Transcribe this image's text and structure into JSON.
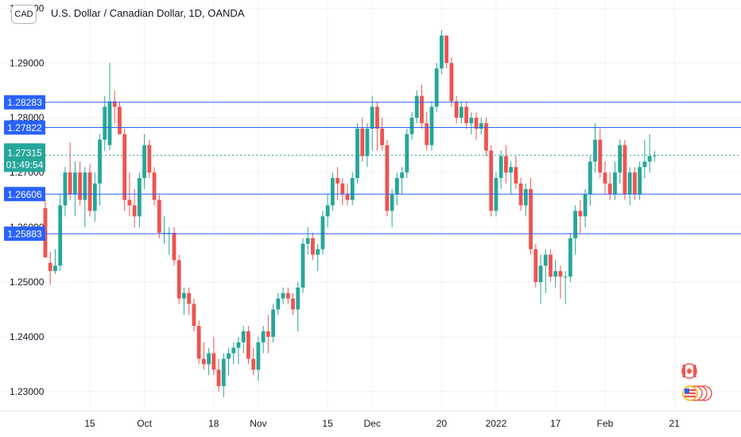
{
  "header": {
    "currency_badge": "CAD",
    "title": "U.S. Dollar / Canadian Dollar, 1D, OANDA"
  },
  "colors": {
    "up": "#26a69a",
    "down": "#ef5350",
    "hline": "#2962ff",
    "grid": "#f0f3fa",
    "axis_text": "#131722",
    "current": "#26a69a"
  },
  "chart_data": {
    "type": "candlestick",
    "title": "",
    "ylim": [
      1.2265,
      1.3015
    ],
    "y_ticks": [
      "1.23000",
      "1.24000",
      "1.25000",
      "1.26000",
      "1.27000",
      "1.28000",
      "1.29000",
      "1.30000"
    ],
    "y_tick_values": [
      1.23,
      1.24,
      1.25,
      1.26,
      1.27,
      1.28,
      1.29,
      1.3
    ],
    "x_ticks": [
      "15",
      "Oct",
      "18",
      "Nov",
      "15",
      "Dec",
      "20",
      "2022",
      "17",
      "Feb",
      "21"
    ],
    "x_tick_index": [
      9,
      20,
      34,
      43,
      57,
      66,
      80,
      91,
      103,
      113,
      127
    ],
    "horizontal_lines": [
      {
        "label": "1.28283",
        "value": 1.28283
      },
      {
        "label": "1.27822",
        "value": 1.27822
      },
      {
        "label": "1.26606",
        "value": 1.26606
      },
      {
        "label": "1.25883",
        "value": 1.25883
      }
    ],
    "current_price": {
      "label": "1.27315",
      "value": 1.27315,
      "countdown": "01:49:54"
    },
    "candles": [
      [
        1.2635,
        1.265,
        1.2545,
        1.2545
      ],
      [
        1.2535,
        1.2555,
        1.2495,
        1.252
      ],
      [
        1.252,
        1.256,
        1.2515,
        1.253
      ],
      [
        1.253,
        1.266,
        1.252,
        1.264
      ],
      [
        1.264,
        1.271,
        1.262,
        1.27
      ],
      [
        1.27,
        1.2755,
        1.265,
        1.266
      ],
      [
        1.266,
        1.272,
        1.262,
        1.27
      ],
      [
        1.27,
        1.272,
        1.264,
        1.265
      ],
      [
        1.265,
        1.271,
        1.26,
        1.27
      ],
      [
        1.27,
        1.2715,
        1.262,
        1.263
      ],
      [
        1.263,
        1.27,
        1.261,
        1.268
      ],
      [
        1.268,
        1.277,
        1.264,
        1.276
      ],
      [
        1.276,
        1.284,
        1.274,
        1.282
      ],
      [
        1.275,
        1.29,
        1.274,
        1.283
      ],
      [
        1.283,
        1.285,
        1.279,
        1.282
      ],
      [
        1.282,
        1.283,
        1.277,
        1.277
      ],
      [
        1.277,
        1.278,
        1.263,
        1.265
      ],
      [
        1.265,
        1.27,
        1.262,
        1.264
      ],
      [
        1.264,
        1.267,
        1.26,
        1.262
      ],
      [
        1.262,
        1.27,
        1.26,
        1.269
      ],
      [
        1.269,
        1.277,
        1.267,
        1.275
      ],
      [
        1.275,
        1.276,
        1.269,
        1.27
      ],
      [
        1.27,
        1.271,
        1.264,
        1.265
      ],
      [
        1.265,
        1.266,
        1.258,
        1.259
      ],
      [
        1.259,
        1.262,
        1.257,
        1.259
      ],
      [
        1.259,
        1.26,
        1.255,
        1.259
      ],
      [
        1.259,
        1.26,
        1.253,
        1.254
      ],
      [
        1.254,
        1.255,
        1.246,
        1.247
      ],
      [
        1.247,
        1.249,
        1.244,
        1.248
      ],
      [
        1.248,
        1.249,
        1.244,
        1.246
      ],
      [
        1.246,
        1.247,
        1.241,
        1.242
      ],
      [
        1.242,
        1.243,
        1.235,
        1.236
      ],
      [
        1.236,
        1.239,
        1.234,
        1.235
      ],
      [
        1.235,
        1.238,
        1.233,
        1.237
      ],
      [
        1.237,
        1.24,
        1.233,
        1.234
      ],
      [
        1.234,
        1.236,
        1.23,
        1.231
      ],
      [
        1.231,
        1.237,
        1.229,
        1.236
      ],
      [
        1.236,
        1.238,
        1.233,
        1.237
      ],
      [
        1.237,
        1.239,
        1.235,
        1.238
      ],
      [
        1.238,
        1.24,
        1.235,
        1.239
      ],
      [
        1.239,
        1.242,
        1.237,
        1.241
      ],
      [
        1.241,
        1.242,
        1.235,
        1.236
      ],
      [
        1.236,
        1.238,
        1.233,
        1.234
      ],
      [
        1.234,
        1.24,
        1.232,
        1.239
      ],
      [
        1.239,
        1.242,
        1.237,
        1.241
      ],
      [
        1.241,
        1.244,
        1.237,
        1.24
      ],
      [
        1.24,
        1.246,
        1.239,
        1.245
      ],
      [
        1.245,
        1.248,
        1.244,
        1.247
      ],
      [
        1.247,
        1.249,
        1.246,
        1.248
      ],
      [
        1.248,
        1.249,
        1.246,
        1.247
      ],
      [
        1.247,
        1.248,
        1.244,
        1.245
      ],
      [
        1.245,
        1.25,
        1.241,
        1.249
      ],
      [
        1.249,
        1.258,
        1.248,
        1.257
      ],
      [
        1.257,
        1.26,
        1.255,
        1.258
      ],
      [
        1.258,
        1.259,
        1.254,
        1.255
      ],
      [
        1.255,
        1.257,
        1.252,
        1.256
      ],
      [
        1.256,
        1.263,
        1.255,
        1.262
      ],
      [
        1.262,
        1.266,
        1.26,
        1.264
      ],
      [
        1.264,
        1.27,
        1.263,
        1.269
      ],
      [
        1.269,
        1.271,
        1.265,
        1.268
      ],
      [
        1.268,
        1.269,
        1.264,
        1.266
      ],
      [
        1.266,
        1.268,
        1.264,
        1.265
      ],
      [
        1.265,
        1.27,
        1.264,
        1.269
      ],
      [
        1.269,
        1.279,
        1.268,
        1.278
      ],
      [
        1.278,
        1.28,
        1.272,
        1.273
      ],
      [
        1.273,
        1.279,
        1.271,
        1.278
      ],
      [
        1.278,
        1.284,
        1.274,
        1.282
      ],
      [
        1.282,
        1.283,
        1.274,
        1.278
      ],
      [
        1.278,
        1.28,
        1.274,
        1.275
      ],
      [
        1.275,
        1.276,
        1.262,
        1.263
      ],
      [
        1.263,
        1.267,
        1.26,
        1.266
      ],
      [
        1.266,
        1.27,
        1.264,
        1.269
      ],
      [
        1.269,
        1.271,
        1.266,
        1.27
      ],
      [
        1.27,
        1.278,
        1.269,
        1.277
      ],
      [
        1.277,
        1.281,
        1.276,
        1.28
      ],
      [
        1.28,
        1.285,
        1.279,
        1.284
      ],
      [
        1.284,
        1.286,
        1.278,
        1.279
      ],
      [
        1.279,
        1.281,
        1.274,
        1.275
      ],
      [
        1.275,
        1.283,
        1.274,
        1.282
      ],
      [
        1.282,
        1.29,
        1.281,
        1.289
      ],
      [
        1.289,
        1.296,
        1.288,
        1.295
      ],
      [
        1.295,
        1.295,
        1.289,
        1.29
      ],
      [
        1.29,
        1.291,
        1.282,
        1.283
      ],
      [
        1.283,
        1.284,
        1.279,
        1.28
      ],
      [
        1.28,
        1.283,
        1.279,
        1.282
      ],
      [
        1.282,
        1.283,
        1.278,
        1.279
      ],
      [
        1.279,
        1.281,
        1.277,
        1.28
      ],
      [
        1.28,
        1.281,
        1.276,
        1.278
      ],
      [
        1.278,
        1.28,
        1.277,
        1.279
      ],
      [
        1.279,
        1.28,
        1.273,
        1.274
      ],
      [
        1.274,
        1.275,
        1.262,
        1.263
      ],
      [
        1.263,
        1.27,
        1.262,
        1.269
      ],
      [
        1.269,
        1.274,
        1.267,
        1.273
      ],
      [
        1.273,
        1.275,
        1.268,
        1.27
      ],
      [
        1.27,
        1.272,
        1.266,
        1.271
      ],
      [
        1.271,
        1.273,
        1.267,
        1.268
      ],
      [
        1.268,
        1.269,
        1.263,
        1.264
      ],
      [
        1.264,
        1.268,
        1.262,
        1.267
      ],
      [
        1.267,
        1.269,
        1.255,
        1.256
      ],
      [
        1.256,
        1.257,
        1.249,
        1.25
      ],
      [
        1.25,
        1.255,
        1.246,
        1.253
      ],
      [
        1.253,
        1.256,
        1.248,
        1.255
      ],
      [
        1.255,
        1.256,
        1.25,
        1.251
      ],
      [
        1.251,
        1.254,
        1.249,
        1.252
      ],
      [
        1.252,
        1.253,
        1.247,
        1.251
      ],
      [
        1.251,
        1.252,
        1.246,
        1.251
      ],
      [
        1.251,
        1.259,
        1.25,
        1.258
      ],
      [
        1.258,
        1.264,
        1.255,
        1.263
      ],
      [
        1.263,
        1.265,
        1.259,
        1.262
      ],
      [
        1.262,
        1.267,
        1.26,
        1.266
      ],
      [
        1.266,
        1.273,
        1.264,
        1.272
      ],
      [
        1.272,
        1.279,
        1.27,
        1.276
      ],
      [
        1.276,
        1.278,
        1.269,
        1.27
      ],
      [
        1.27,
        1.272,
        1.266,
        1.268
      ],
      [
        1.268,
        1.27,
        1.265,
        1.266
      ],
      [
        1.266,
        1.272,
        1.265,
        1.27
      ],
      [
        1.27,
        1.276,
        1.268,
        1.275
      ],
      [
        1.275,
        1.276,
        1.265,
        1.266
      ],
      [
        1.266,
        1.271,
        1.264,
        1.27
      ],
      [
        1.27,
        1.271,
        1.265,
        1.266
      ],
      [
        1.266,
        1.272,
        1.265,
        1.271
      ],
      [
        1.271,
        1.276,
        1.269,
        1.272
      ],
      [
        1.272,
        1.277,
        1.27,
        1.273
      ],
      [
        1.273,
        1.274,
        1.272,
        1.2731
      ]
    ]
  }
}
